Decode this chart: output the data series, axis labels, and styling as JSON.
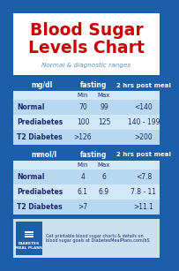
{
  "title_line1": "Blood Sugar",
  "title_line2": "Levels Chart",
  "subtitle": "Normal & diagnostic ranges",
  "title_color": "#cc0000",
  "subtitle_color": "#5a8fc0",
  "bg_header": "#ffffff",
  "bg_table_header": "#1a5fa8",
  "bg_row_light": "#b8d8f0",
  "bg_row_lighter": "#d0e8f8",
  "bg_outer": "#1a5fa8",
  "bg_footer": "#c8e0f0",
  "text_white": "#ffffff",
  "text_dark": "#1a2a6e",
  "text_subhead": "#5a7faa",
  "mgdl_header": [
    "mg/dl",
    "fasting",
    "2 hrs post meal"
  ],
  "mgdl_rows": [
    [
      "Normal",
      "70",
      "99",
      "<140"
    ],
    [
      "Prediabetes",
      "100",
      "125",
      "140 - 199"
    ],
    [
      "T2 Diabetes",
      ">126",
      "",
      ">200"
    ]
  ],
  "mmoll_header": [
    "mmol/l",
    "fasting",
    "2 hrs post meal"
  ],
  "mmoll_rows": [
    [
      "Normal",
      "4",
      "6",
      "<7.8"
    ],
    [
      "Prediabetes",
      "6.1",
      "6.9",
      "7.8 - 11"
    ],
    [
      "T2 Diabetes",
      ">7",
      "",
      ">11.1"
    ]
  ],
  "footer_logo_text": "DIABETES\nMEAL PLANS",
  "footer_body": "Get printable blood sugar charts & details on\nblood sugar goals at DiabetesMealPlans.com/bS"
}
